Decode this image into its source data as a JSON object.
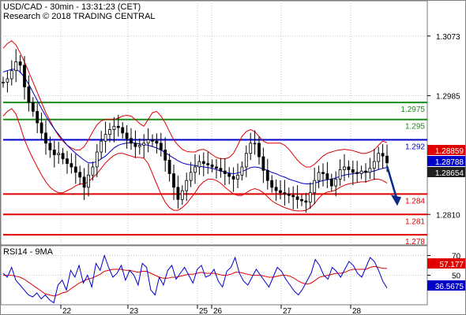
{
  "header": {
    "title": "USD/CAD - 30min - 13:31:23 (CET)",
    "credit": "Research © 2018 TRADING CENTRAL"
  },
  "chart_data": [
    {
      "type": "line",
      "panel": "price",
      "series": [],
      "x_tick_labels": [
        "22",
        "23",
        "25",
        "26",
        "27",
        "28"
      ],
      "y_tick_labels": [
        "1.3073",
        "1.2985",
        "1.2810"
      ],
      "ylim": [
        1.2765,
        1.3125
      ],
      "grid": true,
      "levels": [
        {
          "value": 1.2975,
          "label": "1.2975",
          "color": "#1a8a1a"
        },
        {
          "value": 1.295,
          "label": "1.295",
          "color": "#1a8a1a"
        },
        {
          "value": 1.292,
          "label": "1.292",
          "color": "#0000c8"
        },
        {
          "value": 1.284,
          "label": "1.284",
          "color": "#e00000"
        },
        {
          "value": 1.281,
          "label": "1.281",
          "color": "#e00000"
        },
        {
          "value": 1.278,
          "label": "1.278",
          "color": "#e00000"
        }
      ],
      "price_flags": [
        {
          "value": 1.28859,
          "label": "1.28859",
          "color": "#e00000"
        },
        {
          "value": 1.28788,
          "label": "1.28788",
          "color": "#0000c8"
        },
        {
          "value": 1.28654,
          "label": "1.28654",
          "color": "#1f1f1f"
        }
      ],
      "close": [
        1.3005,
        1.301,
        1.3022,
        1.3035,
        1.303,
        1.2998,
        1.2975,
        1.2962,
        1.2945,
        1.293,
        1.2915,
        1.2905,
        1.2898,
        1.29,
        1.2892,
        1.2885,
        1.288,
        1.2872,
        1.2865,
        1.285,
        1.2868,
        1.288,
        1.2902,
        1.2918,
        1.2928,
        1.2935,
        1.294,
        1.2938,
        1.293,
        1.2922,
        1.2915,
        1.291,
        1.2912,
        1.2915,
        1.292,
        1.2918,
        1.2915,
        1.2905,
        1.289,
        1.287,
        1.285,
        1.2832,
        1.2845,
        1.286,
        1.2872,
        1.288,
        1.2888,
        1.2885,
        1.2883,
        1.288,
        1.2878,
        1.2874,
        1.287,
        1.2866,
        1.2862,
        1.2868,
        1.288,
        1.29,
        1.2915,
        1.2915,
        1.2895,
        1.2875,
        1.286,
        1.285,
        1.2845,
        1.2842,
        1.284,
        1.2838,
        1.2836,
        1.2832,
        1.283,
        1.2828,
        1.2842,
        1.286,
        1.2872,
        1.287,
        1.2862,
        1.2852,
        1.2862,
        1.2876,
        1.288,
        1.2876,
        1.2872,
        1.287,
        1.2874,
        1.2872,
        1.2878,
        1.2888,
        1.29,
        1.2896,
        1.2886
      ],
      "bb_upper": [
        1.3055,
        1.3062,
        1.3066,
        1.306,
        1.3048,
        1.3035,
        1.302,
        1.3005,
        1.299,
        1.2975,
        1.296,
        1.2948,
        1.2936,
        1.2926,
        1.2918,
        1.2912,
        1.2908,
        1.2905,
        1.2905,
        1.291,
        1.292,
        1.2932,
        1.2942,
        1.2948,
        1.295,
        1.295,
        1.295,
        1.2952,
        1.2955,
        1.2956,
        1.2955,
        1.295,
        1.2944,
        1.294,
        1.295,
        1.296,
        1.2962,
        1.2955,
        1.2945,
        1.2932,
        1.292,
        1.2912,
        1.2906,
        1.2903,
        1.2902,
        1.2902,
        1.2905,
        1.2906,
        1.2903,
        1.2898,
        1.2894,
        1.2892,
        1.2892,
        1.2894,
        1.29,
        1.2912,
        1.2925,
        1.2932,
        1.2935,
        1.2932,
        1.2925,
        1.2918,
        1.2915,
        1.2915,
        1.2915,
        1.2915,
        1.2912,
        1.2906,
        1.2898,
        1.289,
        1.2884,
        1.288,
        1.288,
        1.2884,
        1.289,
        1.2896,
        1.29,
        1.2902,
        1.2904,
        1.2905,
        1.2906,
        1.2905,
        1.2904,
        1.2902,
        1.29,
        1.29,
        1.2902,
        1.2905,
        1.2912,
        1.2918,
        1.2916
      ],
      "bb_lower": [
        1.2955,
        1.2962,
        1.2966,
        1.2958,
        1.294,
        1.292,
        1.2905,
        1.2892,
        1.288,
        1.2868,
        1.2858,
        1.285,
        1.2845,
        1.2842,
        1.2842,
        1.2845,
        1.2848,
        1.2852,
        1.2855,
        1.2855,
        1.2858,
        1.2864,
        1.287,
        1.2878,
        1.2886,
        1.2892,
        1.2897,
        1.29,
        1.29,
        1.2898,
        1.2896,
        1.2894,
        1.2894,
        1.2893,
        1.2885,
        1.287,
        1.2855,
        1.284,
        1.2828,
        1.282,
        1.2816,
        1.2816,
        1.282,
        1.2826,
        1.2834,
        1.2842,
        1.2852,
        1.2858,
        1.2862,
        1.2862,
        1.286,
        1.2856,
        1.285,
        1.2845,
        1.284,
        1.2838,
        1.2838,
        1.2842,
        1.2846,
        1.2848,
        1.2846,
        1.2842,
        1.2836,
        1.283,
        1.2826,
        1.2823,
        1.282,
        1.2818,
        1.2816,
        1.2815,
        1.2815,
        1.2816,
        1.282,
        1.2826,
        1.2834,
        1.284,
        1.2843,
        1.2844,
        1.2846,
        1.285,
        1.2853,
        1.2855,
        1.2856,
        1.2857,
        1.2858,
        1.2858,
        1.286,
        1.2862,
        1.2862,
        1.286,
        1.2856
      ],
      "ma": [
        1.302,
        1.3022,
        1.3024,
        1.3024,
        1.302,
        1.3012,
        1.3002,
        1.299,
        1.2978,
        1.2966,
        1.2955,
        1.2945,
        1.2936,
        1.2928,
        1.292,
        1.2912,
        1.2906,
        1.29,
        1.2895,
        1.289,
        1.2886,
        1.2886,
        1.2888,
        1.2892,
        1.2896,
        1.2902,
        1.2908,
        1.2912,
        1.2914,
        1.2915,
        1.2916,
        1.2915,
        1.2914,
        1.2913,
        1.2912,
        1.291,
        1.2908,
        1.2905,
        1.2901,
        1.2897,
        1.2893,
        1.2889,
        1.2886,
        1.2884,
        1.2883,
        1.2882,
        1.2881,
        1.288,
        1.2879,
        1.2878,
        1.2876,
        1.2874,
        1.2872,
        1.2871,
        1.287,
        1.2871,
        1.2873,
        1.2876,
        1.2879,
        1.288,
        1.2879,
        1.2877,
        1.2875,
        1.2872,
        1.287,
        1.2867,
        1.2865,
        1.2862,
        1.286,
        1.2858,
        1.2856,
        1.2855,
        1.2855,
        1.2856,
        1.2858,
        1.286,
        1.2861,
        1.2862,
        1.2864,
        1.2866,
        1.2868,
        1.2869,
        1.287,
        1.2871,
        1.2872,
        1.2872,
        1.2873,
        1.2874,
        1.2876,
        1.2878,
        1.2879
      ]
    },
    {
      "type": "line",
      "panel": "indicator",
      "title": "RSI14 - 9MA",
      "y_tick_labels": [
        "70",
        "50"
      ],
      "ylim": [
        20,
        80
      ],
      "grid": true,
      "value_flags": [
        {
          "value": 57.177,
          "label": "57.177",
          "color": "#e00000"
        },
        {
          "value": 36.5675,
          "label": "36.5675",
          "color": "#0000c8"
        }
      ],
      "rsi": [
        52,
        48,
        58,
        45,
        40,
        35,
        30,
        28,
        32,
        26,
        30,
        25,
        22,
        40,
        45,
        35,
        55,
        48,
        60,
        42,
        50,
        38,
        62,
        55,
        70,
        58,
        48,
        52,
        60,
        45,
        55,
        50,
        40,
        62,
        58,
        35,
        30,
        48,
        40,
        55,
        60,
        46,
        52,
        58,
        50,
        42,
        56,
        60,
        48,
        50,
        56,
        44,
        38,
        54,
        58,
        68,
        52,
        44,
        40,
        48,
        56,
        50,
        44,
        38,
        48,
        58,
        54,
        46,
        40,
        34,
        30,
        36,
        44,
        52,
        66,
        60,
        50,
        46,
        58,
        54,
        48,
        56,
        64,
        60,
        52,
        48,
        58,
        68,
        64,
        55,
        44,
        37
      ],
      "rsi_ma": [
        50,
        50,
        50,
        49,
        48,
        46,
        43,
        40,
        37,
        34,
        31,
        30,
        29,
        30,
        32,
        33,
        36,
        39,
        42,
        44,
        46,
        47,
        49,
        51,
        54,
        55,
        56,
        56,
        56,
        55,
        55,
        54,
        53,
        54,
        54,
        52,
        50,
        48,
        47,
        47,
        48,
        48,
        49,
        50,
        51,
        51,
        52,
        53,
        52,
        52,
        52,
        51,
        50,
        50,
        51,
        53,
        53,
        52,
        51,
        50,
        50,
        50,
        49,
        48,
        48,
        49,
        50,
        50,
        49,
        47,
        44,
        42,
        41,
        42,
        45,
        48,
        49,
        50,
        51,
        52,
        52,
        53,
        55,
        56,
        56,
        56,
        56,
        58,
        59,
        58,
        57,
        57
      ]
    }
  ],
  "date_labels": [
    "22",
    "23",
    "25",
    "26",
    "27",
    "28"
  ],
  "colors": {
    "candle": "#000000",
    "bollinger": "#e00000",
    "ma": "#0000c8",
    "support": "#e00000",
    "resistance": "#1a8a1a",
    "pivot": "#0000c8",
    "arrow": "#0a2a8a",
    "rsi": "#0000c8",
    "rsi_ma": "#e00000"
  }
}
